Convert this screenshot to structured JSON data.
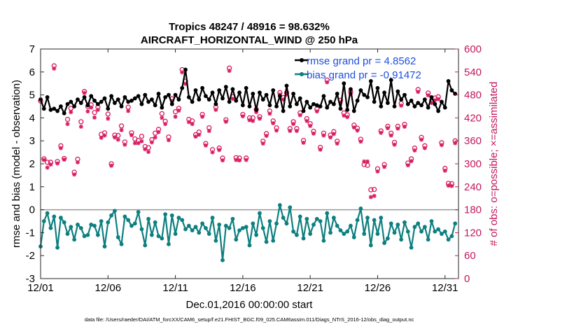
{
  "chart_data": {
    "type": "line",
    "title": "Tropics 48247 / 48916 = 98.632%",
    "subtitle": "AIRCRAFT_HORIZONTAL_WIND @ 250 hPa",
    "xlabel": "Dec.01,2016 00:00:00 start",
    "ylabel": "rmse and bias (model - observation)",
    "y2label": "# of obs: o=possible; ×=assimilated",
    "footnote": "data file: /Users/raeder/DAI/ATM_forcXX/CAM6_setup/f.e21.FHIST_BGC.f09_025.CAM6assim.011/Diags_NTrS_2016-12/obs_diag_output.nc",
    "x_ticks": [
      "12/01",
      "12/06",
      "12/11",
      "12/16",
      "12/21",
      "12/26",
      "12/31"
    ],
    "x_tick_values": [
      1,
      6,
      11,
      16,
      21,
      26,
      31
    ],
    "xlim": [
      1,
      32
    ],
    "ylim": [
      -3,
      7
    ],
    "y_ticks": [
      "-3",
      "-2",
      "-1",
      "0",
      "1",
      "2",
      "3",
      "4",
      "5",
      "6",
      "7"
    ],
    "y2lim": [
      0,
      600
    ],
    "y2_ticks": [
      "0",
      "60",
      "120",
      "180",
      "240",
      "300",
      "360",
      "420",
      "480",
      "540",
      "600"
    ],
    "legend": [
      "rmse grand pr = 4.8562",
      "bias grand pr = -0.91472"
    ],
    "colors": {
      "rmse": "#000000",
      "bias": "#0e7f7f",
      "obs": "#d81b60",
      "axis2": "#c2185b",
      "legend_text": "#1f4fe0",
      "zero_line": "#9a9a9a"
    },
    "x": [
      1.0,
      1.25,
      1.5,
      1.75,
      2.0,
      2.25,
      2.5,
      2.75,
      3.0,
      3.25,
      3.5,
      3.75,
      4.0,
      4.25,
      4.5,
      4.75,
      5.0,
      5.25,
      5.5,
      5.75,
      6.0,
      6.25,
      6.5,
      6.75,
      7.0,
      7.25,
      7.5,
      7.75,
      8.0,
      8.25,
      8.5,
      8.75,
      9.0,
      9.25,
      9.5,
      9.75,
      10.0,
      10.25,
      10.5,
      10.75,
      11.0,
      11.25,
      11.5,
      11.75,
      12.0,
      12.25,
      12.5,
      12.75,
      13.0,
      13.25,
      13.5,
      13.75,
      14.0,
      14.25,
      14.5,
      14.75,
      15.0,
      15.25,
      15.5,
      15.75,
      16.0,
      16.25,
      16.5,
      16.75,
      17.0,
      17.25,
      17.5,
      17.75,
      18.0,
      18.25,
      18.5,
      18.75,
      19.0,
      19.25,
      19.5,
      19.75,
      20.0,
      20.25,
      20.5,
      20.75,
      21.0,
      21.25,
      21.5,
      21.75,
      22.0,
      22.25,
      22.5,
      22.75,
      23.0,
      23.25,
      23.5,
      23.75,
      24.0,
      24.25,
      24.5,
      24.75,
      25.0,
      25.25,
      25.5,
      25.75,
      26.0,
      26.25,
      26.5,
      26.75,
      27.0,
      27.25,
      27.5,
      27.75,
      28.0,
      28.25,
      28.5,
      28.75,
      29.0,
      29.25,
      29.5,
      29.75,
      30.0,
      30.25,
      30.5,
      30.75,
      31.0,
      31.25,
      31.5,
      31.75
    ],
    "series": [
      {
        "name": "rmse",
        "values": [
          4.8,
          4.4,
          4.9,
          4.35,
          4.4,
          4.3,
          4.5,
          4.2,
          4.6,
          4.7,
          4.5,
          4.8,
          4.65,
          4.9,
          4.55,
          4.95,
          4.75,
          4.6,
          4.7,
          4.85,
          4.4,
          4.95,
          4.65,
          4.8,
          4.5,
          4.9,
          4.7,
          4.75,
          4.85,
          4.95,
          4.6,
          5.0,
          4.7,
          4.8,
          4.55,
          5.05,
          4.45,
          4.9,
          5.0,
          4.6,
          5.0,
          4.8,
          5.3,
          6.1,
          4.9,
          4.7,
          5.2,
          4.8,
          5.3,
          4.95,
          4.8,
          5.1,
          4.6,
          5.2,
          4.85,
          5.35,
          4.7,
          5.25,
          4.75,
          5.1,
          4.55,
          5.3,
          4.5,
          5.05,
          4.35,
          5.1,
          4.8,
          5.0,
          4.55,
          5.2,
          4.5,
          4.95,
          4.3,
          5.4,
          4.5,
          5.05,
          4.6,
          4.85,
          4.3,
          4.7,
          4.45,
          4.6,
          4.55,
          4.5,
          4.95,
          4.45,
          4.7,
          4.6,
          5.05,
          4.4,
          5.5,
          4.35,
          5.25,
          4.3,
          4.75,
          5.2,
          5.0,
          4.9,
          5.6,
          4.7,
          5.3,
          4.5,
          5.1,
          4.65,
          5.65,
          4.5,
          5.15,
          4.8,
          5.0,
          4.6,
          4.75,
          4.5,
          4.65,
          4.55,
          4.8,
          4.45,
          4.9,
          4.6,
          4.3,
          4.7,
          4.45,
          5.6,
          5.2,
          5.05
        ]
      },
      {
        "name": "bias",
        "values": [
          -1.6,
          -0.5,
          -0.15,
          -0.8,
          -0.3,
          -1.65,
          -0.35,
          -0.55,
          -1.05,
          -0.75,
          -1.3,
          -0.65,
          -0.8,
          -1.15,
          -1.1,
          -0.65,
          -0.7,
          -1.1,
          -0.5,
          -1.6,
          -0.55,
          -0.25,
          -0.05,
          -1.2,
          -1.5,
          -0.3,
          -0.45,
          -0.7,
          -0.6,
          -0.1,
          -0.85,
          -1.55,
          -0.4,
          -1.1,
          -0.55,
          -1.15,
          -1.25,
          -0.2,
          -1.5,
          -0.25,
          -1.05,
          -0.35,
          -0.45,
          -0.85,
          -0.7,
          -0.9,
          -0.75,
          -1.0,
          -0.6,
          -0.8,
          -1.05,
          -0.35,
          -1.35,
          -0.65,
          -2.2,
          -0.7,
          -0.8,
          -0.4,
          -1.3,
          -0.9,
          -0.8,
          -0.75,
          -1.55,
          -0.6,
          -1.1,
          -0.15,
          -0.8,
          -1.4,
          -0.5,
          -1.35,
          -0.6,
          0.2,
          -0.35,
          -0.6,
          0.1,
          -0.95,
          -1.1,
          -0.3,
          -1.25,
          -0.4,
          -1.05,
          -0.65,
          -0.4,
          -0.5,
          -1.35,
          -0.15,
          -1.0,
          -0.35,
          -0.7,
          -0.9,
          -1.05,
          -0.95,
          -0.7,
          -1.2,
          -0.45,
          0.05,
          -1.05,
          -0.35,
          -1.55,
          -0.45,
          -1.05,
          -0.35,
          -1.45,
          -1.25,
          -0.6,
          -1.0,
          -0.65,
          -1.3,
          -0.55,
          -0.95,
          -1.65,
          -0.75,
          -0.6,
          -0.95,
          -0.75,
          -1.3,
          -0.5,
          -0.95,
          -0.85,
          -1.05,
          -0.95,
          -1.3,
          -1.15,
          -0.6
        ]
      },
      {
        "name": "possible obs",
        "axis": "y2",
        "values": [
          464,
          313,
          304,
          304,
          556,
          306,
          347,
          314,
          416,
          445,
          278,
          312,
          410,
          489,
          450,
          454,
          434,
          448,
          377,
          381,
          430,
          300,
          375,
          374,
          399,
          357,
          448,
          381,
          365,
          361,
          372,
          345,
          342,
          363,
          380,
          390,
          431,
          411,
          370,
          470,
          436,
          445,
          546,
          516,
          416,
          412,
          376,
          383,
          429,
          353,
          394,
          337,
          448,
          341,
          315,
          415,
          550,
          475,
          316,
          315,
          429,
          315,
          420,
          420,
          442,
          423,
          359,
          379,
          438,
          412,
          394,
          486,
          473,
          486,
          392,
          410,
          392,
          433,
          361,
          418,
          405,
          385,
          443,
          343,
          380,
          519,
          375,
          384,
          359,
          466,
          433,
          428,
          488,
          401,
          393,
          364,
          298,
          296,
          232,
          233,
          287,
          386,
          298,
          398,
          380,
          356,
          398,
          458,
          403,
          302,
          313,
          341,
          494,
          369,
          347,
          485,
          465,
          472,
          475,
          355,
          288,
          249,
          248,
          360
        ]
      },
      {
        "name": "assimilated obs",
        "axis": "y2",
        "values": [
          468,
          310,
          290,
          298,
          549,
          301,
          341,
          311,
          404,
          435,
          272,
          304,
          397,
          485,
          437,
          447,
          421,
          441,
          368,
          374,
          418,
          295,
          369,
          363,
          388,
          350,
          438,
          375,
          354,
          354,
          359,
          338,
          331,
          356,
          369,
          383,
          420,
          404,
          362,
          464,
          423,
          439,
          539,
          509,
          409,
          404,
          371,
          376,
          423,
          348,
          386,
          330,
          441,
          336,
          309,
          410,
          543,
          470,
          310,
          309,
          424,
          310,
          414,
          412,
          435,
          418,
          353,
          373,
          431,
          406,
          387,
          481,
          468,
          481,
          386,
          404,
          386,
          427,
          355,
          412,
          399,
          379,
          437,
          337,
          374,
          513,
          369,
          378,
          353,
          460,
          426,
          422,
          482,
          395,
          387,
          358,
          306,
          306,
          213,
          216,
          280,
          381,
          292,
          393,
          374,
          350,
          392,
          452,
          397,
          296,
          307,
          335,
          488,
          363,
          341,
          479,
          459,
          466,
          469,
          349,
          282,
          243,
          242,
          354
        ]
      }
    ]
  }
}
